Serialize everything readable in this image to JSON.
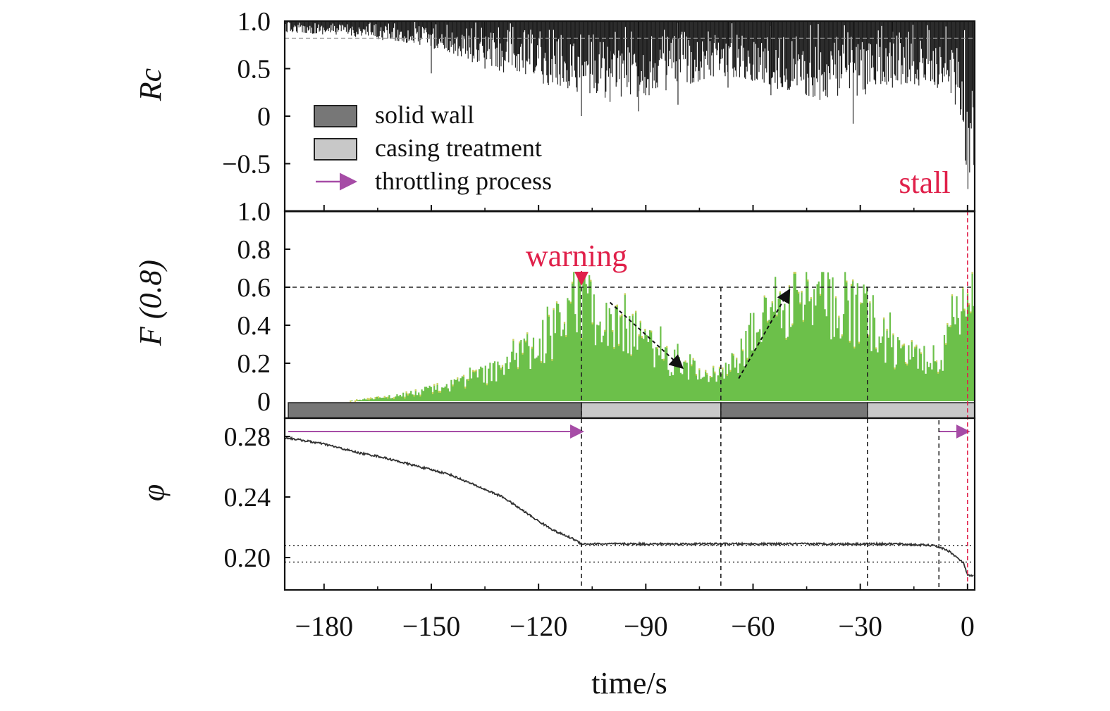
{
  "chart_data": [
    {
      "type": "line",
      "panel": "top",
      "ylabel": "Rc",
      "ylim": [
        -1.0,
        1.0
      ],
      "yticks": [
        "1.0",
        "0.5",
        "0",
        "−0.5"
      ],
      "reference_line": 0.82,
      "annotation": "stall",
      "legend": {
        "placement": "left",
        "items": [
          {
            "label": "solid wall",
            "color": "#777777",
            "kind": "box"
          },
          {
            "label": "casing treatment",
            "color": "#c8c8c8",
            "kind": "box"
          },
          {
            "label": "throttling process",
            "color": "#a64ca6",
            "kind": "arrow"
          }
        ]
      },
      "series": [
        {
          "envelope_x": [
            -190,
            -175,
            -160,
            -150,
            -140,
            -130,
            -120,
            -110,
            -100,
            -90,
            -80,
            -70,
            -60,
            -50,
            -40,
            -30,
            -20,
            -10,
            -4,
            -1,
            0
          ],
          "envelope_min": [
            0.88,
            0.85,
            0.78,
            0.72,
            0.58,
            0.45,
            0.35,
            0.25,
            0.18,
            0.2,
            0.3,
            0.42,
            0.35,
            0.25,
            0.15,
            0.2,
            0.3,
            0.3,
            0.2,
            -0.3,
            -0.95
          ],
          "envelope_max": [
            1.0,
            1.0,
            1.0,
            1.0,
            1.0,
            1.0,
            1.0,
            1.0,
            1.0,
            1.0,
            1.0,
            1.0,
            1.0,
            1.0,
            1.0,
            1.0,
            1.0,
            1.0,
            1.0,
            1.0,
            1.0
          ],
          "spikes": [
            {
              "x": -150,
              "y": 0.45
            },
            {
              "x": -135,
              "y": 0.5
            },
            {
              "x": -108,
              "y": 0.0
            },
            {
              "x": -100,
              "y": 0.15
            },
            {
              "x": -92,
              "y": 0.05
            },
            {
              "x": -81,
              "y": 0.12
            },
            {
              "x": -67,
              "y": 0.3
            },
            {
              "x": -55,
              "y": 0.22
            },
            {
              "x": -32,
              "y": -0.08
            },
            {
              "x": -21,
              "y": 0.3
            }
          ]
        }
      ]
    },
    {
      "type": "bar",
      "panel": "middle",
      "ylabel": "F (0.8)",
      "ylim": [
        0,
        1.0
      ],
      "yticks": [
        "1.0",
        "0.8",
        "0.6",
        "0.4",
        "0.2",
        "0"
      ],
      "threshold": 0.6,
      "annotation": "warning",
      "warning_x": -108,
      "trend_arrows": [
        {
          "x1": -100,
          "y1": 0.52,
          "x2": -80,
          "y2": 0.18
        },
        {
          "x1": -64,
          "y1": 0.12,
          "x2": -50,
          "y2": 0.58
        }
      ],
      "series": [
        {
          "x": [
            -190,
            -180,
            -175,
            -170,
            -165,
            -160,
            -155,
            -150,
            -145,
            -140,
            -135,
            -130,
            -125,
            -120,
            -115,
            -112,
            -108,
            -104,
            -100,
            -96,
            -92,
            -88,
            -84,
            -80,
            -76,
            -72,
            -68,
            -64,
            -60,
            -56,
            -52,
            -48,
            -44,
            -40,
            -36,
            -32,
            -28,
            -24,
            -20,
            -16,
            -12,
            -8,
            -5,
            -3,
            -1,
            0
          ],
          "y": [
            0.0,
            0.0,
            0.0,
            0.01,
            0.02,
            0.03,
            0.05,
            0.07,
            0.09,
            0.12,
            0.16,
            0.2,
            0.26,
            0.32,
            0.42,
            0.5,
            0.56,
            0.5,
            0.45,
            0.4,
            0.36,
            0.3,
            0.25,
            0.2,
            0.18,
            0.16,
            0.16,
            0.25,
            0.38,
            0.48,
            0.55,
            0.56,
            0.57,
            0.56,
            0.55,
            0.52,
            0.5,
            0.38,
            0.3,
            0.26,
            0.24,
            0.25,
            0.35,
            0.48,
            0.6,
            0.62
          ],
          "color": "#6cc04a"
        }
      ],
      "configuration_bar": [
        {
          "from": -190,
          "to": -108,
          "label": "solid wall"
        },
        {
          "from": -108,
          "to": -69,
          "label": "casing treatment"
        },
        {
          "from": -69,
          "to": -28,
          "label": "solid wall"
        },
        {
          "from": -28,
          "to": 2,
          "label": "casing treatment"
        }
      ]
    },
    {
      "type": "line",
      "panel": "bottom",
      "ylabel": "φ",
      "xlabel": "time/s",
      "ylim": [
        0.19,
        0.285
      ],
      "xlim": [
        -191,
        2
      ],
      "yticks": [
        "0.28",
        "0.24",
        "0.20"
      ],
      "xticks": [
        "−180",
        "−150",
        "−120",
        "−90",
        "−60",
        "−30",
        "0"
      ],
      "reference_levels": [
        0.208,
        0.197
      ],
      "throttling_arrows": [
        {
          "from": -190,
          "to": -108
        },
        {
          "from": -8,
          "to": 0
        }
      ],
      "series": [
        {
          "x": [
            -190,
            -185,
            -180,
            -175,
            -170,
            -165,
            -160,
            -155,
            -150,
            -145,
            -140,
            -135,
            -130,
            -125,
            -120,
            -115,
            -110,
            -108,
            -100,
            -90,
            -80,
            -70,
            -60,
            -50,
            -40,
            -30,
            -20,
            -10,
            -8,
            -5,
            -3,
            -1,
            0
          ],
          "y": [
            0.279,
            0.277,
            0.275,
            0.272,
            0.269,
            0.267,
            0.264,
            0.261,
            0.258,
            0.255,
            0.25,
            0.245,
            0.24,
            0.232,
            0.224,
            0.217,
            0.212,
            0.209,
            0.209,
            0.209,
            0.209,
            0.209,
            0.209,
            0.209,
            0.209,
            0.209,
            0.209,
            0.208,
            0.207,
            0.204,
            0.2,
            0.196,
            0.188
          ],
          "color": "#333333"
        }
      ]
    }
  ]
}
